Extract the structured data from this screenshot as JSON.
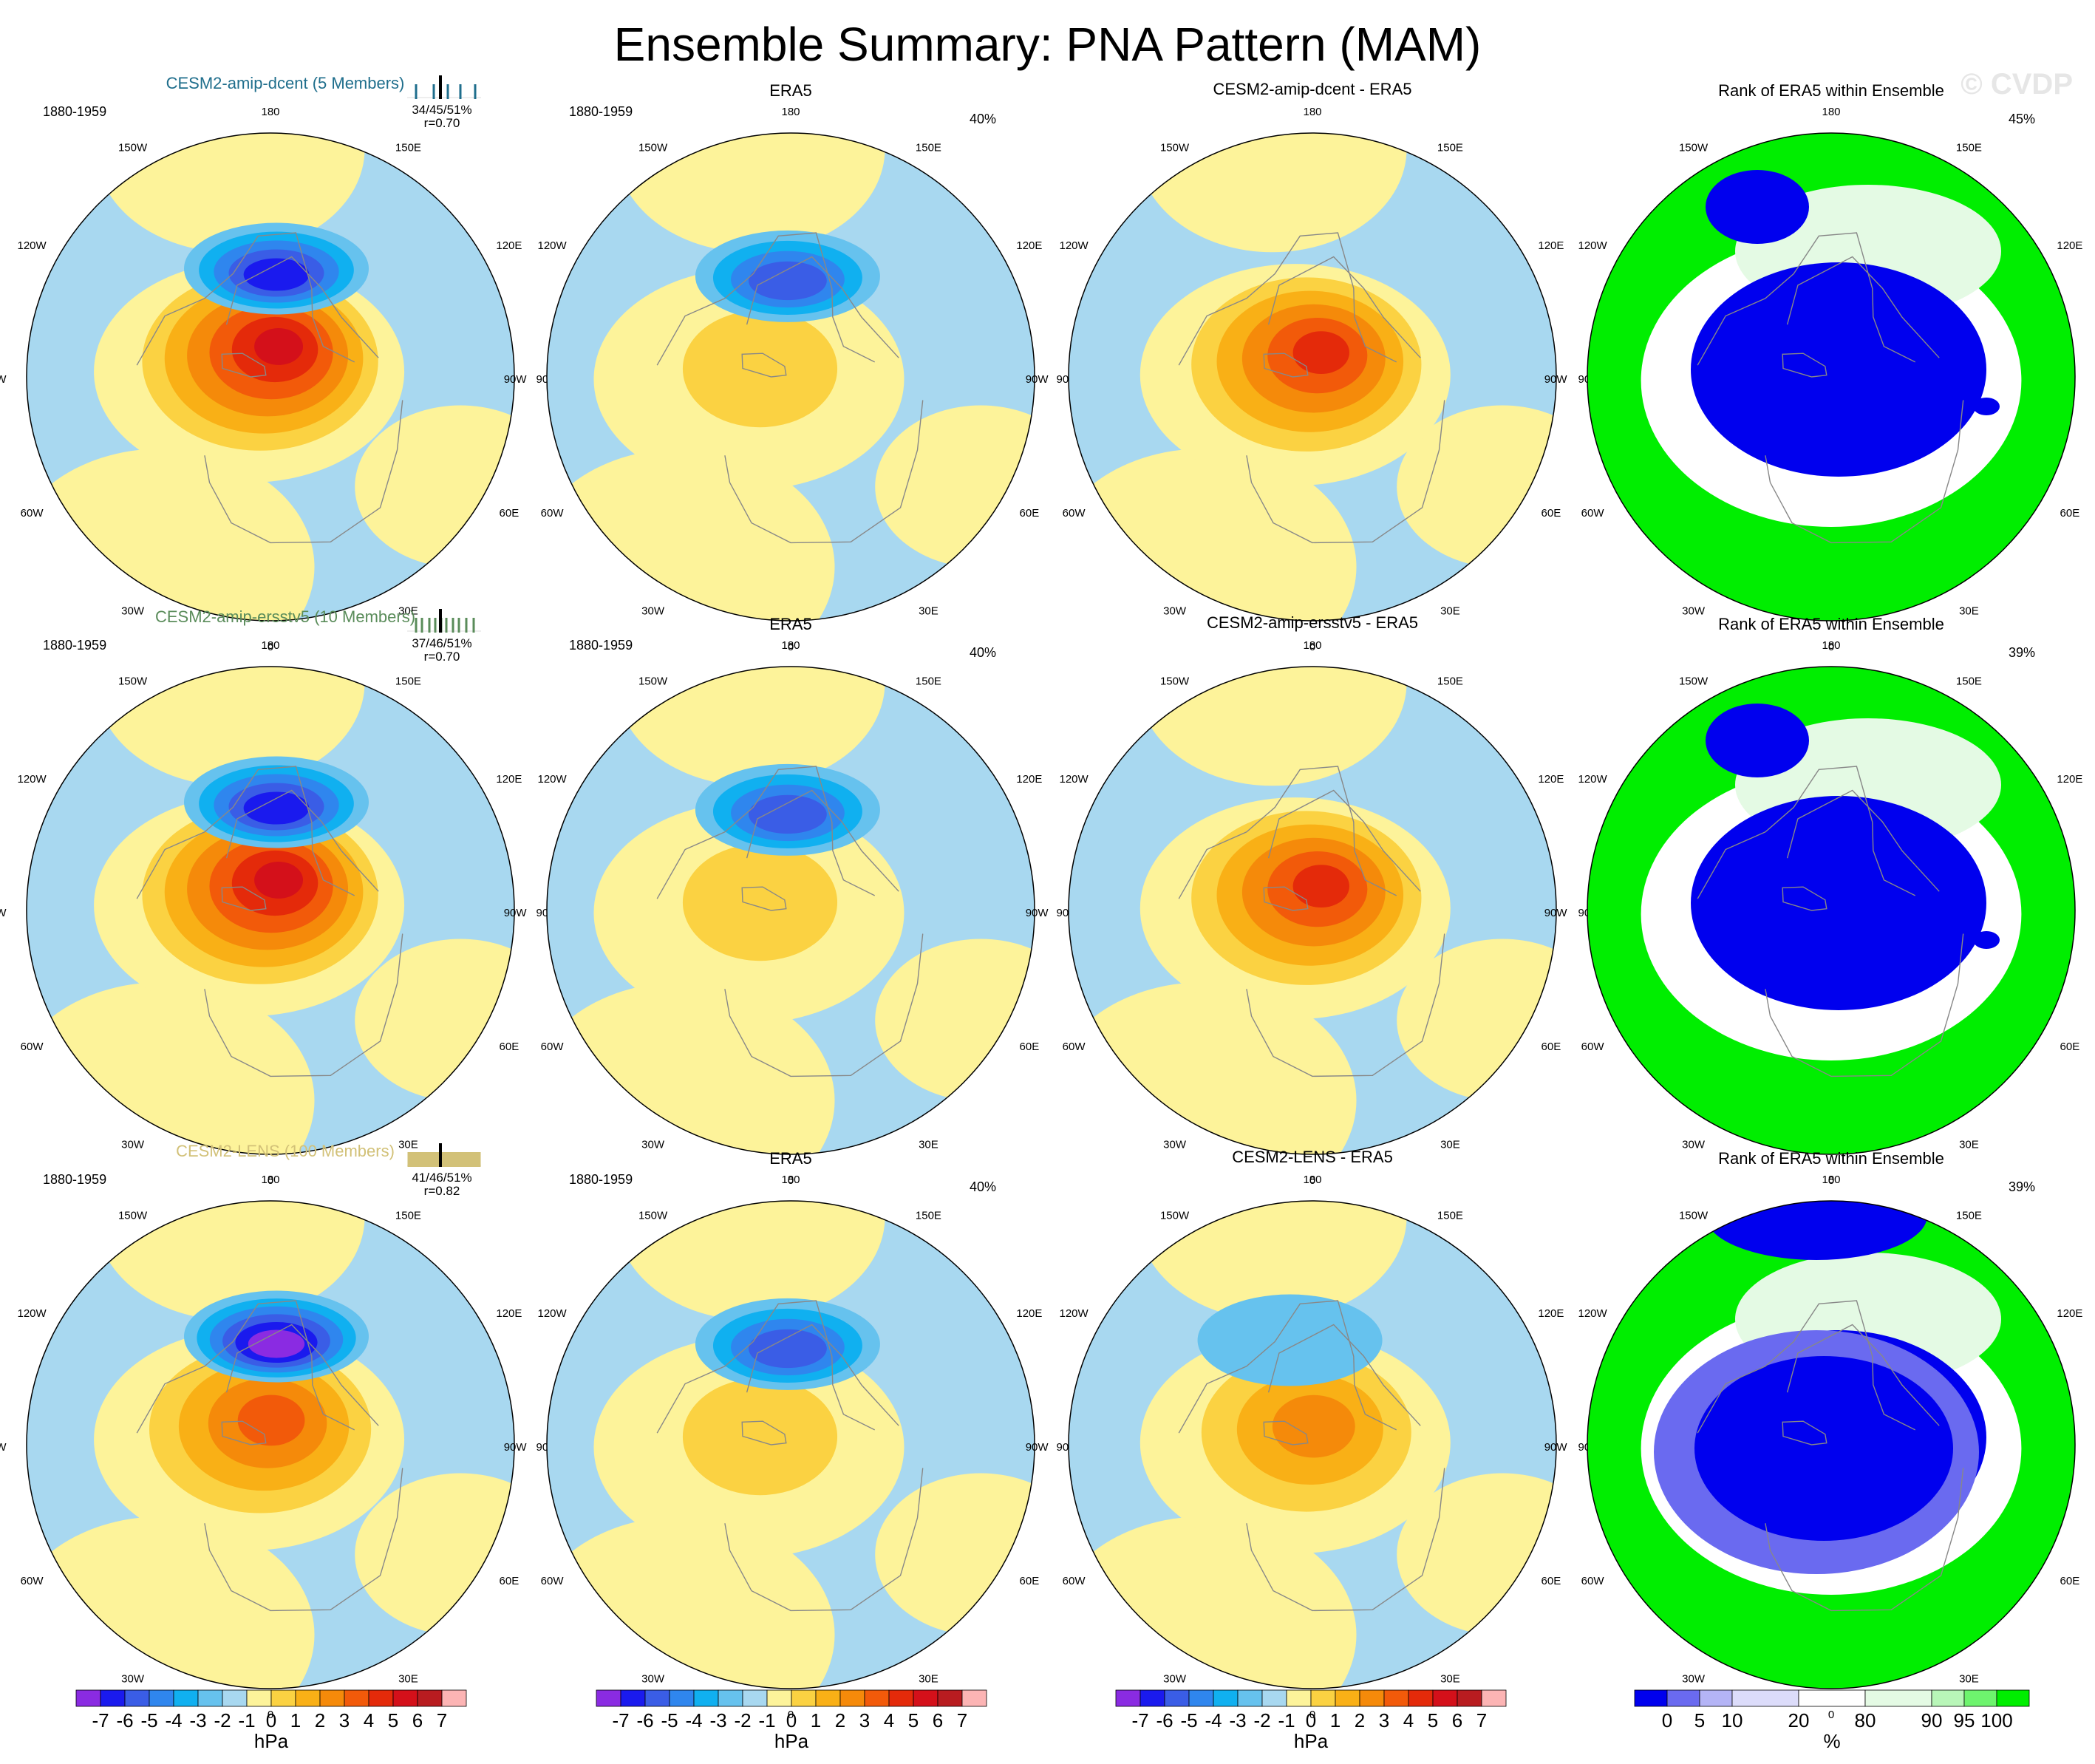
{
  "title": "Ensemble Summary: PNA Pattern (MAM)",
  "watermark": "© CVDP",
  "colors": {
    "hpa_scale": [
      "#8a2be2",
      "#1a1aee",
      "#3a5de6",
      "#2f86ee",
      "#10b0f0",
      "#66c2ee",
      "#a8d8f0",
      "#fdf39a",
      "#fbd242",
      "#f9b016",
      "#f58a0a",
      "#f25a0a",
      "#e42a0a",
      "#d4101a",
      "#b81c20",
      "#fcb4b4"
    ],
    "rank_scale": [
      "#0000ee",
      "#6a6af0",
      "#b4b4f6",
      "#dcdcfa",
      "#ffffff",
      "#e4fae4",
      "#b8f6b8",
      "#6ef46e",
      "#00ee00"
    ],
    "coast": "#888888",
    "dcent_title": "#1f6e8c",
    "ersst_title": "#5a8c5a",
    "lens_title": "#d2c178"
  },
  "chart_data": {
    "type": "heatmap",
    "projection": "north-polar-stereographic",
    "variable": "PNA sea level pressure pattern",
    "season": "MAM",
    "longitude_labels": [
      "180",
      "150E",
      "120E",
      "90E",
      "60E",
      "30E",
      "0",
      "30W",
      "60W",
      "90W",
      "120W",
      "150W"
    ],
    "period_label": "1880-1959",
    "rows": [
      {
        "model_title": "CESM2-amip-dcent (5 Members)",
        "title_color": "#1f6e8c",
        "pct_summary": "34/45/51%",
        "pattern_corr": "r=0.70",
        "member_ticks": [
          0.12,
          0.36,
          0.55,
          0.72,
          0.92
        ],
        "obs_title": "ERA5",
        "obs_pct": "40%",
        "diff_title": "CESM2-amip-dcent - ERA5",
        "rank_title": "Rank of ERA5 within Ensemble",
        "rank_pct": "45%",
        "model_field": {
          "low": {
            "lon": 180,
            "colat": 0.45,
            "min": -5
          },
          "high": {
            "lon": 215,
            "colat": 0.1,
            "max": 6
          }
        },
        "obs_field": {
          "low": {
            "lon": 185,
            "colat": 0.42,
            "min": -4
          },
          "high": {
            "lon": 250,
            "colat": 0.15,
            "max": 0
          }
        },
        "diff_field": {
          "high": {
            "lon": 210,
            "colat": 0.08,
            "max": 5
          }
        }
      },
      {
        "model_title": "CESM2-amip-ersstv5 (10 Members)",
        "title_color": "#5a8c5a",
        "pct_summary": "37/46/51%",
        "pattern_corr": "r=0.70",
        "member_ticks": [
          0.12,
          0.2,
          0.3,
          0.38,
          0.46,
          0.53,
          0.62,
          0.7,
          0.8,
          0.9
        ],
        "obs_title": "ERA5",
        "obs_pct": "40%",
        "diff_title": "CESM2-amip-ersstv5 - ERA5",
        "rank_title": "Rank of ERA5 within Ensemble",
        "rank_pct": "39%",
        "model_field": {
          "low": {
            "lon": 180,
            "colat": 0.45,
            "min": -5
          },
          "high": {
            "lon": 215,
            "colat": 0.1,
            "max": 6
          }
        },
        "obs_field": {
          "low": {
            "lon": 185,
            "colat": 0.42,
            "min": -4
          },
          "high": {
            "lon": 250,
            "colat": 0.15,
            "max": 0
          }
        },
        "diff_field": {
          "high": {
            "lon": 210,
            "colat": 0.08,
            "max": 5
          }
        }
      },
      {
        "model_title": "CESM2-LENS (100 Members)",
        "title_color": "#d2c178",
        "pct_summary": "41/46/51%",
        "pattern_corr": "r=0.82",
        "member_ticks": [
          0.02,
          0.05,
          0.08,
          0.11,
          0.14,
          0.17,
          0.2,
          0.23,
          0.26,
          0.29,
          0.32,
          0.35,
          0.38,
          0.41,
          0.44,
          0.47,
          0.5,
          0.53,
          0.56,
          0.59,
          0.62,
          0.65,
          0.68,
          0.71,
          0.74,
          0.77,
          0.8,
          0.83,
          0.86,
          0.89,
          0.92,
          0.95,
          0.98
        ],
        "obs_title": "ERA5",
        "obs_pct": "40%",
        "diff_title": "CESM2-LENS - ERA5",
        "rank_title": "Rank of ERA5 within Ensemble",
        "rank_pct": "39%",
        "model_field": {
          "low": {
            "lon": 180,
            "colat": 0.45,
            "min": -6
          },
          "high": {
            "lon": 215,
            "colat": 0.1,
            "max": 4
          }
        },
        "obs_field": {
          "low": {
            "lon": 185,
            "colat": 0.42,
            "min": -4
          },
          "high": {
            "lon": 250,
            "colat": 0.15,
            "max": 0
          }
        },
        "diff_field": {
          "low": {
            "lon": 195,
            "colat": 0.45,
            "min": -1
          },
          "high": {
            "lon": 210,
            "colat": 0.08,
            "max": 3
          }
        }
      }
    ],
    "colorbar_hpa": {
      "label": "hPa",
      "ticks": [
        "-7",
        "-6",
        "-5",
        "-4",
        "-3",
        "-2",
        "-1",
        "0",
        "1",
        "2",
        "3",
        "4",
        "5",
        "6",
        "7"
      ]
    },
    "colorbar_rank": {
      "label": "%",
      "ticks": [
        "0",
        "5",
        "10",
        "20",
        "80",
        "90",
        "95",
        "100"
      ]
    }
  }
}
